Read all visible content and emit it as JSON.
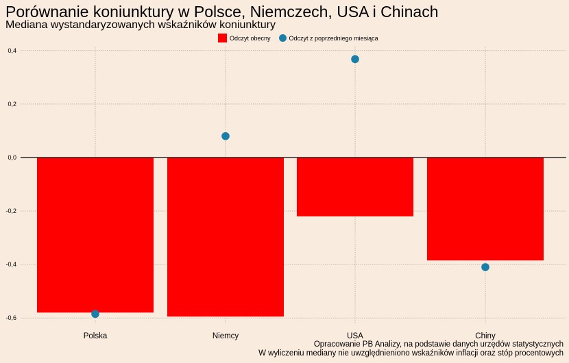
{
  "chart_data": {
    "type": "bar",
    "title": "Porównanie koniunktury w Polsce, Niemczech, USA i Chinach",
    "subtitle": "Mediana wystandaryzowanych wskaźników koniunktury",
    "categories": [
      "Polska",
      "Niemcy",
      "USA",
      "Chiny"
    ],
    "series": [
      {
        "name": "Odczyt obecny",
        "kind": "bar",
        "color": "#ff0000",
        "values": [
          -0.58,
          -0.595,
          -0.22,
          -0.385
        ]
      },
      {
        "name": "Odczyt z poprzedniego miesiąca",
        "kind": "point",
        "color": "#1a7fa8",
        "values": [
          -0.585,
          0.08,
          0.368,
          -0.41
        ]
      }
    ],
    "ylim": [
      -0.62,
      0.415
    ],
    "yticks": [
      "-0,6",
      "-0,4",
      "-0,2",
      "0,0",
      "0,2",
      "0,4"
    ],
    "ytick_values": [
      -0.6,
      -0.4,
      -0.2,
      0.0,
      0.2,
      0.4
    ],
    "grid": true,
    "legend_position": "top",
    "captions": [
      "Opracowanie PB Analizy, na podstawie danych urzędów statystycznych",
      "W wyliczeniu mediany nie uwzględnieniono wskaźników inflacji oraz stóp procentowych"
    ]
  },
  "colors": {
    "background": "#faebdf",
    "bar": "#ff0000",
    "point": "#1a7fa8",
    "grid": "#9a9a9a"
  }
}
